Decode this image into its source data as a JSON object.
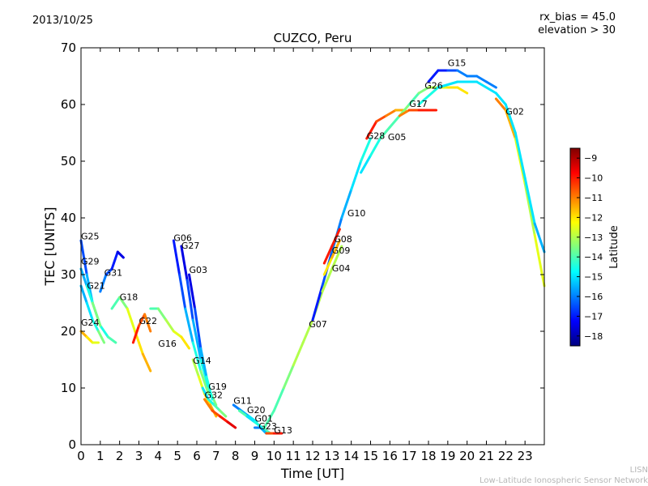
{
  "header": {
    "date": "2013/10/25",
    "rx_bias": "rx_bias = 45.0",
    "elevation": "elevation > 30"
  },
  "footer": {
    "line1": "LISN",
    "line2": "Low-Latitude Ionospheric Sensor Network"
  },
  "chart_data": {
    "type": "scatter",
    "title": "CUZCO, Peru",
    "xlabel": "Time [UT]",
    "ylabel": "TEC [UNITS]",
    "xlim": [
      0,
      24
    ],
    "ylim": [
      0,
      70
    ],
    "xticks": [
      0,
      1,
      2,
      3,
      4,
      5,
      6,
      7,
      8,
      9,
      10,
      11,
      12,
      13,
      14,
      15,
      16,
      17,
      18,
      19,
      20,
      21,
      22,
      23
    ],
    "yticks": [
      0,
      10,
      20,
      30,
      40,
      50,
      60,
      70
    ],
    "colorbar": {
      "label": "Latitude",
      "range": [
        -18.5,
        -8.5
      ],
      "ticks": [
        -9,
        -10,
        -11,
        -12,
        -13,
        -14,
        -15,
        -16,
        -17,
        -18
      ],
      "colormap": [
        "#00007f",
        "#0000ff",
        "#007fff",
        "#00ffff",
        "#7fff7f",
        "#ffff00",
        "#ff7f00",
        "#ff0000",
        "#7f0000"
      ]
    },
    "series": [
      {
        "name": "G25",
        "label_x": 0.0,
        "label_y": 36.2,
        "x": [
          0.0,
          0.3,
          0.6,
          1.0,
          1.4,
          1.8
        ],
        "y": [
          36,
          30,
          25,
          21,
          19,
          18
        ],
        "lat": [
          -17,
          -16,
          -15,
          -15,
          -14,
          -14
        ]
      },
      {
        "name": "G29",
        "label_x": 0.0,
        "label_y": 31.8,
        "x": [
          0.0,
          0.3,
          0.6,
          1.0
        ],
        "y": [
          31,
          28,
          25,
          21
        ],
        "lat": [
          -16,
          -15,
          -14,
          -13
        ]
      },
      {
        "name": "G21",
        "label_x": 0.3,
        "label_y": 27.5,
        "x": [
          0.0,
          0.3,
          0.6,
          0.9,
          1.2
        ],
        "y": [
          28,
          25,
          22,
          20,
          18
        ],
        "lat": [
          -16,
          -15,
          -15,
          -14,
          -13
        ]
      },
      {
        "name": "G31",
        "label_x": 1.2,
        "label_y": 29.8,
        "x": [
          1.0,
          1.3,
          1.6,
          1.9,
          2.2
        ],
        "y": [
          27,
          30,
          31,
          34,
          33
        ],
        "lat": [
          -16,
          -16,
          -17,
          -17,
          -18
        ]
      },
      {
        "name": "G24",
        "label_x": 0.0,
        "label_y": 21.0,
        "x": [
          0.0,
          0.3,
          0.6,
          0.9
        ],
        "y": [
          20,
          19,
          18,
          18
        ],
        "lat": [
          -11,
          -12,
          -12,
          -13
        ]
      },
      {
        "name": "G18",
        "label_x": 2.0,
        "label_y": 25.5,
        "x": [
          1.6,
          2.0,
          2.4,
          2.8,
          3.2,
          3.6
        ],
        "y": [
          24,
          26,
          24,
          20,
          16,
          13
        ],
        "lat": [
          -14,
          -14,
          -13,
          -12,
          -12,
          -11
        ]
      },
      {
        "name": "G22",
        "label_x": 3.0,
        "label_y": 21.3,
        "x": [
          2.7,
          3.0,
          3.3,
          3.6
        ],
        "y": [
          18,
          21,
          23,
          20
        ],
        "lat": [
          -10,
          -10,
          -11,
          -11
        ]
      },
      {
        "name": "G16",
        "label_x": 4.0,
        "label_y": 17.3,
        "x": [
          3.6,
          4.0,
          4.4,
          4.8,
          5.2,
          5.6
        ],
        "y": [
          24,
          24,
          22,
          20,
          19,
          17
        ],
        "lat": [
          -14,
          -14,
          -13,
          -13,
          -12,
          -12
        ]
      },
      {
        "name": "G06",
        "label_x": 4.8,
        "label_y": 35.9,
        "x": [
          4.8,
          5.1,
          5.4,
          5.8,
          6.2,
          6.6
        ],
        "y": [
          36,
          30,
          24,
          18,
          13,
          9
        ],
        "lat": [
          -17,
          -17,
          -16,
          -15,
          -14,
          -13
        ]
      },
      {
        "name": "G27",
        "label_x": 5.2,
        "label_y": 34.6,
        "x": [
          5.2,
          5.5,
          5.8,
          6.2,
          6.6,
          7.0
        ],
        "y": [
          35,
          29,
          22,
          15,
          10,
          7
        ],
        "lat": [
          -18,
          -17,
          -16,
          -15,
          -14,
          -13
        ]
      },
      {
        "name": "G03",
        "label_x": 5.6,
        "label_y": 30.3,
        "x": [
          5.6,
          5.9,
          6.2,
          6.5,
          6.8
        ],
        "y": [
          30,
          24,
          17,
          12,
          8
        ],
        "lat": [
          -18,
          -17,
          -16,
          -15,
          -14
        ]
      },
      {
        "name": "G14",
        "label_x": 5.8,
        "label_y": 14.3,
        "x": [
          5.8,
          6.1,
          6.4,
          6.7,
          7.0
        ],
        "y": [
          15,
          12,
          9,
          7,
          5
        ],
        "lat": [
          -13,
          -13,
          -12,
          -12,
          -11
        ]
      },
      {
        "name": "G19",
        "label_x": 6.6,
        "label_y": 9.7,
        "x": [
          6.3,
          6.6,
          6.9,
          7.2,
          7.5
        ],
        "y": [
          10,
          8,
          7,
          6,
          5
        ],
        "lat": [
          -15,
          -15,
          -14,
          -14,
          -13
        ]
      },
      {
        "name": "G32",
        "label_x": 6.4,
        "label_y": 8.2,
        "x": [
          6.4,
          6.8,
          7.2,
          7.6,
          8.0
        ],
        "y": [
          8,
          6,
          5,
          4,
          3
        ],
        "lat": [
          -11,
          -11,
          -10,
          -10,
          -9
        ]
      },
      {
        "name": "G11",
        "label_x": 7.9,
        "label_y": 7.2,
        "x": [
          7.9,
          8.3,
          8.7,
          9.1
        ],
        "y": [
          7,
          6,
          5,
          4
        ],
        "lat": [
          -16,
          -16,
          -15,
          -15
        ]
      },
      {
        "name": "G20",
        "label_x": 8.6,
        "label_y": 5.6,
        "x": [
          8.2,
          8.6,
          9.0,
          9.4
        ],
        "y": [
          6,
          5,
          4,
          3
        ],
        "lat": [
          -14,
          -14,
          -13,
          -13
        ]
      },
      {
        "name": "G01",
        "label_x": 9.0,
        "label_y": 4.1,
        "x": [
          8.6,
          9.0,
          9.4,
          9.8
        ],
        "y": [
          5,
          4,
          3,
          2
        ],
        "lat": [
          -15,
          -15,
          -14,
          -14
        ]
      },
      {
        "name": "G23",
        "label_x": 9.2,
        "label_y": 2.7,
        "x": [
          9.0,
          9.3,
          9.6
        ],
        "y": [
          3,
          3,
          2
        ],
        "lat": [
          -16,
          -16,
          -15
        ]
      },
      {
        "name": "G13",
        "label_x": 10.0,
        "label_y": 2.0,
        "x": [
          9.6,
          10.0,
          10.4
        ],
        "y": [
          2,
          2,
          2
        ],
        "lat": [
          -11,
          -10,
          -10
        ]
      },
      {
        "name": "G07",
        "label_x": 11.8,
        "label_y": 20.7,
        "x": [
          9.5,
          10.0,
          10.5,
          11.0,
          11.5,
          12.0,
          12.5
        ],
        "y": [
          3,
          6,
          10,
          14,
          18,
          22,
          27
        ],
        "lat": [
          -14,
          -14,
          -14,
          -13,
          -13,
          -13,
          -13
        ]
      },
      {
        "name": "G10",
        "label_x": 13.8,
        "label_y": 40.3,
        "x": [
          12.0,
          12.5,
          13.0,
          13.5,
          14.0,
          14.5,
          15.0
        ],
        "y": [
          22,
          28,
          34,
          40,
          45,
          50,
          54
        ],
        "lat": [
          -17,
          -17,
          -16,
          -16,
          -15,
          -15,
          -14
        ]
      },
      {
        "name": "G08",
        "label_x": 13.1,
        "label_y": 35.7,
        "x": [
          12.6,
          13.0,
          13.4
        ],
        "y": [
          32,
          35,
          38
        ],
        "lat": [
          -10,
          -10,
          -10
        ]
      },
      {
        "name": "G09",
        "label_x": 13.0,
        "label_y": 33.7,
        "x": [
          12.6,
          13.0,
          13.4
        ],
        "y": [
          30,
          33,
          36
        ],
        "lat": [
          -12,
          -12,
          -11
        ]
      },
      {
        "name": "G04",
        "label_x": 13.0,
        "label_y": 30.6,
        "x": [
          12.5,
          13.0,
          13.5
        ],
        "y": [
          27,
          31,
          35
        ],
        "lat": [
          -13,
          -13,
          -13
        ]
      },
      {
        "name": "G28",
        "label_x": 14.8,
        "label_y": 53.9,
        "x": [
          14.8,
          15.3,
          15.8,
          16.3,
          16.8
        ],
        "y": [
          54,
          57,
          58,
          59,
          59
        ],
        "lat": [
          -10,
          -10,
          -11,
          -11,
          -12
        ]
      },
      {
        "name": "G05",
        "label_x": 15.9,
        "label_y": 53.7,
        "x": [
          14.5,
          15.0,
          15.5,
          16.0,
          16.5,
          17.0
        ],
        "y": [
          48,
          51,
          54,
          56,
          58,
          60
        ],
        "lat": [
          -15,
          -15,
          -14,
          -14,
          -14,
          -13
        ]
      },
      {
        "name": "G17",
        "label_x": 17.0,
        "label_y": 59.6,
        "x": [
          16.5,
          17.0,
          17.5,
          18.0,
          18.4
        ],
        "y": [
          58,
          59,
          59,
          59,
          59
        ],
        "lat": [
          -11,
          -11,
          -10,
          -10,
          -10
        ]
      },
      {
        "name": "G26",
        "label_x": 17.8,
        "label_y": 62.8,
        "x": [
          17.0,
          17.5,
          18.0,
          18.5,
          19.0,
          19.5,
          20.0
        ],
        "y": [
          60,
          62,
          63,
          63,
          63,
          63,
          62
        ],
        "lat": [
          -14,
          -14,
          -13,
          -13,
          -12,
          -12,
          -12
        ]
      },
      {
        "name": "G15",
        "label_x": 19.0,
        "label_y": 66.8,
        "x": [
          18.0,
          18.5,
          19.0,
          19.5,
          20.0,
          20.5,
          21.0,
          21.5
        ],
        "y": [
          64,
          66,
          66,
          66,
          65,
          65,
          64,
          63
        ],
        "lat": [
          -17,
          -17,
          -17,
          -16,
          -16,
          -16,
          -16,
          -16
        ]
      },
      {
        "name": "G02",
        "label_x": 22.0,
        "label_y": 58.2,
        "x": [
          21.5,
          22.0,
          22.5,
          23.0,
          23.5,
          24.0
        ],
        "y": [
          61,
          59,
          54,
          46,
          37,
          28
        ],
        "lat": [
          -11,
          -11,
          -12,
          -13,
          -13,
          -12
        ]
      },
      {
        "name": "",
        "label_x": 0,
        "label_y": 0,
        "x": [
          17.5,
          18.5,
          19.5,
          20.5,
          21.5,
          22.0,
          22.5,
          23.0,
          23.5,
          24.0
        ],
        "y": [
          60,
          63,
          64,
          64,
          62,
          60,
          55,
          47,
          39,
          34
        ],
        "lat": [
          -14,
          -15,
          -15,
          -15,
          -15,
          -15,
          -15,
          -15,
          -15,
          -16
        ]
      }
    ]
  }
}
